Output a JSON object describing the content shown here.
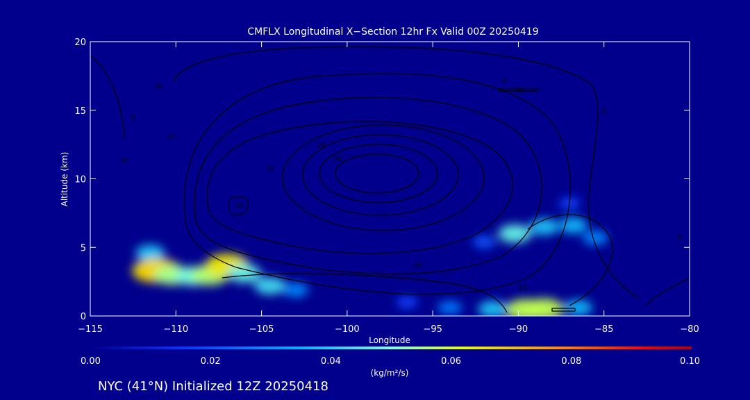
{
  "chart_data": {
    "type": "heatmap",
    "title": "CMFLX Longitudinal X−Section 12hr  Fx Valid 00Z 20250419",
    "xlabel": "Longitude",
    "ylabel": "Altitude (km)",
    "xlim": [
      -115,
      -80
    ],
    "ylim": [
      0,
      20
    ],
    "x_ticks": [
      -115,
      -110,
      -105,
      -100,
      -95,
      -90,
      -85,
      -80
    ],
    "x_tick_labels": [
      "−115",
      "−110",
      "−105",
      "−100",
      "−95",
      "−90",
      "−85",
      "−80"
    ],
    "y_ticks": [
      0,
      5,
      10,
      15,
      20
    ],
    "y_tick_labels": [
      "0",
      "5",
      "10",
      "15",
      "20"
    ],
    "colorbar": {
      "min": 0,
      "max": 0.1,
      "ticks": [
        0.0,
        0.02,
        0.04,
        0.06,
        0.08,
        0.1
      ],
      "tick_labels": [
        "0.00",
        "0.02",
        "0.04",
        "0.06",
        "0.08",
        "0.10"
      ],
      "unit_label": "(kg/m²/s)",
      "colormap": [
        "#00008c",
        "#0a32ff",
        "#00b4ff",
        "#7cffe0",
        "#e8ff00",
        "#ff8c00",
        "#ff0000",
        "#b40000"
      ]
    },
    "cells": [
      {
        "lon": -111.5,
        "alt": 4.6,
        "value": 0.032
      },
      {
        "lon": -111.3,
        "alt": 3.3,
        "value": 0.06
      },
      {
        "lon": -111.0,
        "alt": 3.3,
        "value": 0.063
      },
      {
        "lon": -110.2,
        "alt": 3.0,
        "value": 0.048
      },
      {
        "lon": -109.0,
        "alt": 2.9,
        "value": 0.042
      },
      {
        "lon": -108.0,
        "alt": 3.0,
        "value": 0.05
      },
      {
        "lon": -107.0,
        "alt": 3.7,
        "value": 0.06
      },
      {
        "lon": -106.0,
        "alt": 3.1,
        "value": 0.04
      },
      {
        "lon": -104.5,
        "alt": 2.2,
        "value": 0.036
      },
      {
        "lon": -103.0,
        "alt": 1.9,
        "value": 0.024
      },
      {
        "lon": -96.5,
        "alt": 1.0,
        "value": 0.016
      },
      {
        "lon": -94.0,
        "alt": 0.6,
        "value": 0.022
      },
      {
        "lon": -91.5,
        "alt": 0.5,
        "value": 0.032
      },
      {
        "lon": -89.6,
        "alt": 0.45,
        "value": 0.052
      },
      {
        "lon": -88.5,
        "alt": 0.5,
        "value": 0.052
      },
      {
        "lon": -86.5,
        "alt": 0.6,
        "value": 0.03
      },
      {
        "lon": -92.0,
        "alt": 5.4,
        "value": 0.018
      },
      {
        "lon": -90.2,
        "alt": 6.0,
        "value": 0.04
      },
      {
        "lon": -88.5,
        "alt": 6.5,
        "value": 0.032
      },
      {
        "lon": -86.8,
        "alt": 6.6,
        "value": 0.03
      },
      {
        "lon": -85.5,
        "alt": 5.7,
        "value": 0.024
      },
      {
        "lon": -87.0,
        "alt": 8.2,
        "value": 0.016
      }
    ],
    "contour_labels": [
      {
        "text": "20",
        "lon": -111,
        "alt": 16.6
      },
      {
        "text": "10",
        "lon": -113,
        "alt": 11.2
      },
      {
        "text": "0",
        "lon": -112.5,
        "alt": 14.3
      },
      {
        "text": "10",
        "lon": -110.3,
        "alt": 12.9
      },
      {
        "text": "10",
        "lon": -106.3,
        "alt": 7.9
      },
      {
        "text": "20",
        "lon": -101.5,
        "alt": 12.3
      },
      {
        "text": "30",
        "lon": -100.5,
        "alt": 11.3
      },
      {
        "text": "10",
        "lon": -104.5,
        "alt": 10.6
      },
      {
        "text": "-10",
        "lon": -90.0,
        "alt": 16.3
      },
      {
        "text": "0",
        "lon": -90.8,
        "alt": 17.0
      },
      {
        "text": "0",
        "lon": -85.0,
        "alt": 14.8
      },
      {
        "text": "-10",
        "lon": -95.9,
        "alt": 3.6
      },
      {
        "text": "-20",
        "lon": -89.8,
        "alt": 1.9
      },
      {
        "text": "0",
        "lon": -80.6,
        "alt": 5.6
      }
    ]
  },
  "footer": {
    "caption": "NYC (41°N) Initialized 12Z 20250418"
  }
}
